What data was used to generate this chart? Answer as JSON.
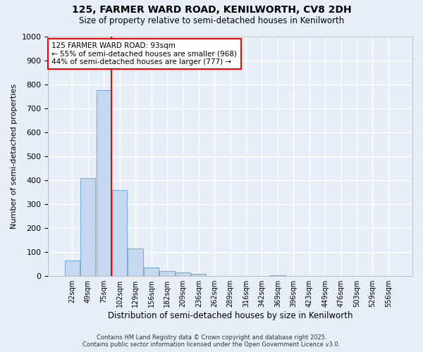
{
  "title1": "125, FARMER WARD ROAD, KENILWORTH, CV8 2DH",
  "title2": "Size of property relative to semi-detached houses in Kenilworth",
  "xlabel": "Distribution of semi-detached houses by size in Kenilworth",
  "ylabel": "Number of semi-detached properties",
  "footer1": "Contains HM Land Registry data © Crown copyright and database right 2025.",
  "footer2": "Contains public sector information licensed under the Open Government Licence v3.0.",
  "categories": [
    "22sqm",
    "49sqm",
    "75sqm",
    "102sqm",
    "129sqm",
    "156sqm",
    "182sqm",
    "209sqm",
    "236sqm",
    "262sqm",
    "289sqm",
    "316sqm",
    "342sqm",
    "369sqm",
    "396sqm",
    "423sqm",
    "449sqm",
    "476sqm",
    "503sqm",
    "529sqm",
    "556sqm"
  ],
  "values": [
    65,
    410,
    775,
    360,
    115,
    35,
    20,
    15,
    10,
    0,
    0,
    0,
    0,
    5,
    0,
    0,
    0,
    0,
    0,
    0,
    0
  ],
  "bar_color": "#c5d8f0",
  "bar_edge_color": "#7aadd4",
  "bg_color": "#e8eef8",
  "grid_color": "#ffffff",
  "red_line_x": 2.5,
  "annotation_line1": "125 FARMER WARD ROAD: 93sqm",
  "annotation_line2": "← 55% of semi-detached houses are smaller (968)",
  "annotation_line3": "44% of semi-detached houses are larger (777) →",
  "ylim": [
    0,
    1000
  ],
  "yticks": [
    0,
    100,
    200,
    300,
    400,
    500,
    600,
    700,
    800,
    900,
    1000
  ]
}
